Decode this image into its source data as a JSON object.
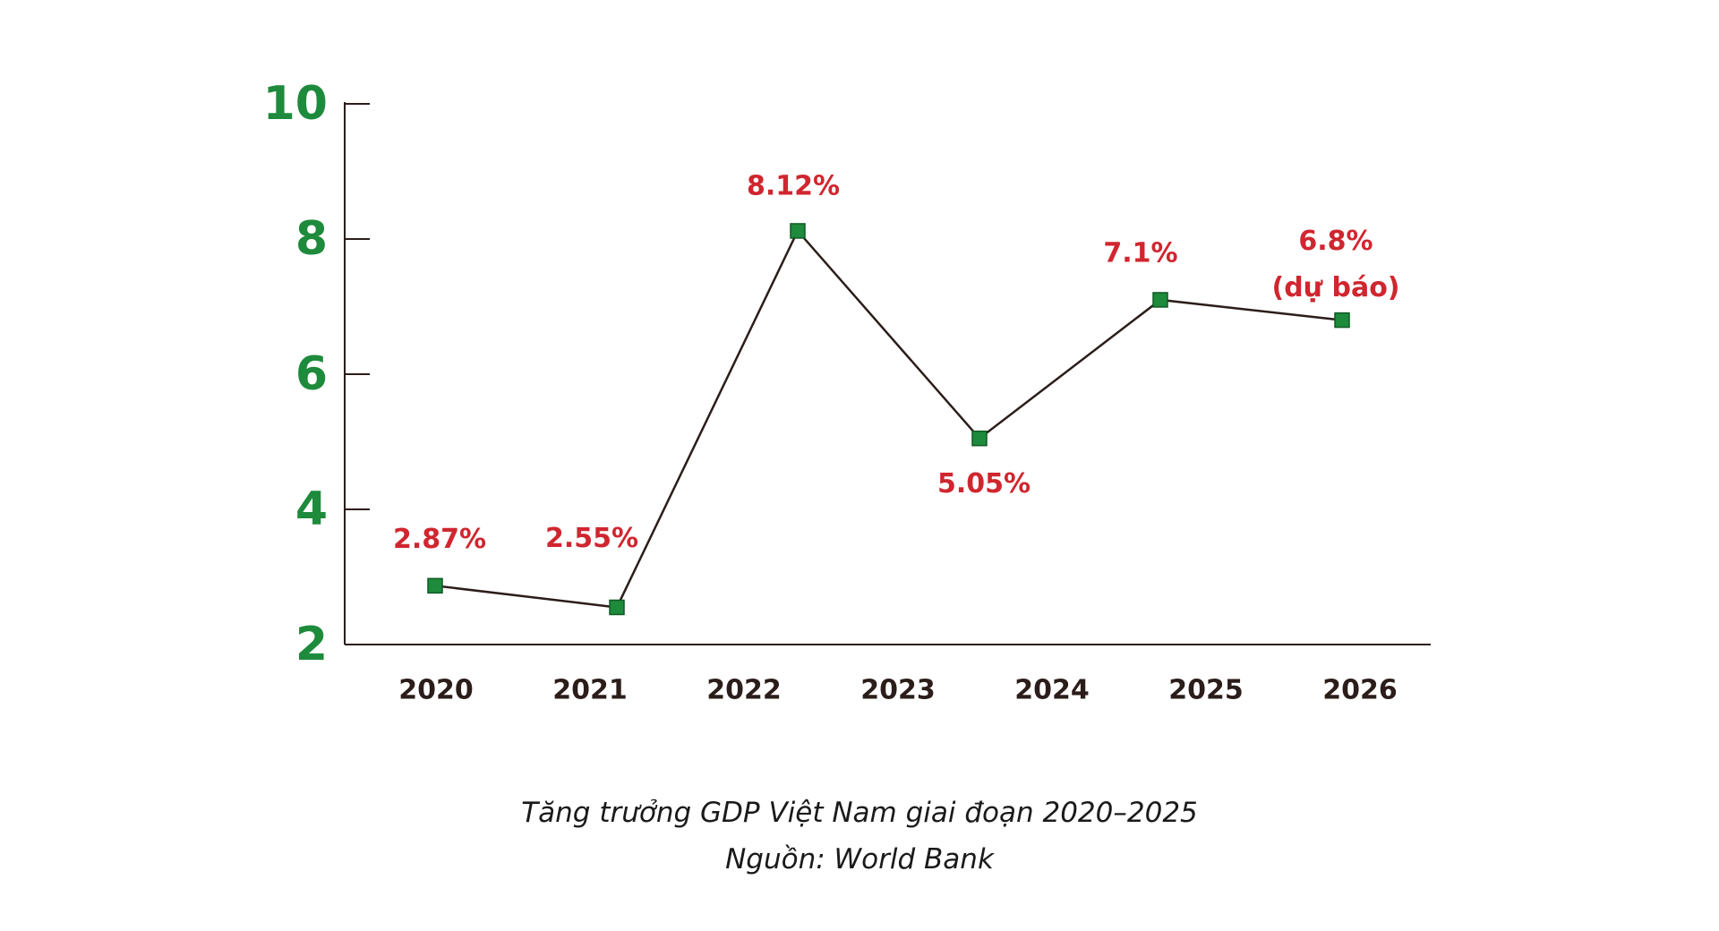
{
  "chart_data": {
    "type": "line",
    "categories": [
      "2020",
      "2021",
      "2022",
      "2023",
      "2024",
      "2025",
      "2026"
    ],
    "points": [
      {
        "x": "2020",
        "y": 2.87,
        "label": "2.87%"
      },
      {
        "x": "2021",
        "y": 2.55,
        "label": "2.55%"
      },
      {
        "x": "2022",
        "y": 8.12,
        "label": "8.12%"
      },
      {
        "x": "2023",
        "y": 5.05,
        "label": "5.05%"
      },
      {
        "x": "2024",
        "y": 7.1,
        "label": "7.1%"
      },
      {
        "x": "2025",
        "y": 6.8,
        "label": "6.8%",
        "label2": "(dự báo)"
      }
    ],
    "yticks": [
      2,
      4,
      6,
      8,
      10
    ],
    "ylim": [
      2,
      10
    ],
    "grid": false,
    "legend": "none"
  },
  "caption": {
    "line1": "Tăng trưởng GDP Việt Nam giai đoạn 2020–2025",
    "line2": "Nguồn: World Bank"
  },
  "colors": {
    "axis": "#2b1d1a",
    "line": "#2b1d1a",
    "marker": "#1e8a3c",
    "marker_stroke": "#0f5a24",
    "ytick": "#1e8a3c",
    "xtick": "#2b1d1a",
    "data_label": "#d0262f"
  }
}
